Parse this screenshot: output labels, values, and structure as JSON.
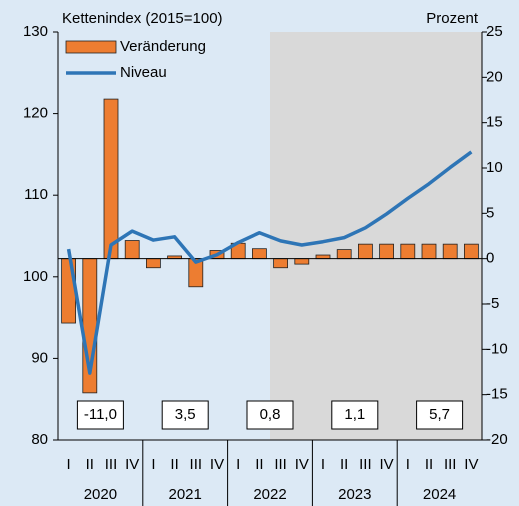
{
  "chart_data": {
    "type": "combo",
    "ylabel": "Kettenindex (2015=100)",
    "y2label": "Prozent",
    "categories": [
      "I",
      "II",
      "III",
      "IV",
      "I",
      "II",
      "III",
      "IV",
      "I",
      "II",
      "III",
      "IV",
      "I",
      "II",
      "III",
      "IV",
      "I",
      "II",
      "III",
      "IV"
    ],
    "years": [
      "2020",
      "2021",
      "2022",
      "2023",
      "2024"
    ],
    "annotations": [
      {
        "value": -11.0,
        "label": "-11,0"
      },
      {
        "value": 3.5,
        "label": "3,5"
      },
      {
        "value": 0.8,
        "label": "0,8"
      },
      {
        "value": 1.1,
        "label": "1,1"
      },
      {
        "value": 5.7,
        "label": "5,7"
      }
    ],
    "series": [
      {
        "name": "Veränderung",
        "type": "bar",
        "axis": "y2",
        "color": "#ed7d31",
        "values": [
          -7.1,
          -14.8,
          17.6,
          2.0,
          -1.0,
          0.3,
          -3.1,
          0.9,
          1.7,
          1.1,
          -1.0,
          -0.6,
          0.4,
          1.0,
          1.6,
          1.6,
          1.6,
          1.6,
          1.6,
          1.6
        ]
      },
      {
        "name": "Niveau",
        "type": "line",
        "axis": "y",
        "color": "#2e75b6",
        "values": [
          103.4,
          88.2,
          103.9,
          105.6,
          104.5,
          104.9,
          101.8,
          102.7,
          104.2,
          105.4,
          104.4,
          103.9,
          104.3,
          104.8,
          106.0,
          107.7,
          109.6,
          111.4,
          113.4,
          115.3
        ]
      }
    ],
    "ylim": [
      80,
      130
    ],
    "yticks": [
      80,
      90,
      100,
      110,
      120,
      130
    ],
    "y2lim": [
      -20,
      25
    ],
    "y2ticks": [
      -20,
      -15,
      -10,
      -5,
      0,
      5,
      10,
      15,
      20,
      25
    ]
  }
}
